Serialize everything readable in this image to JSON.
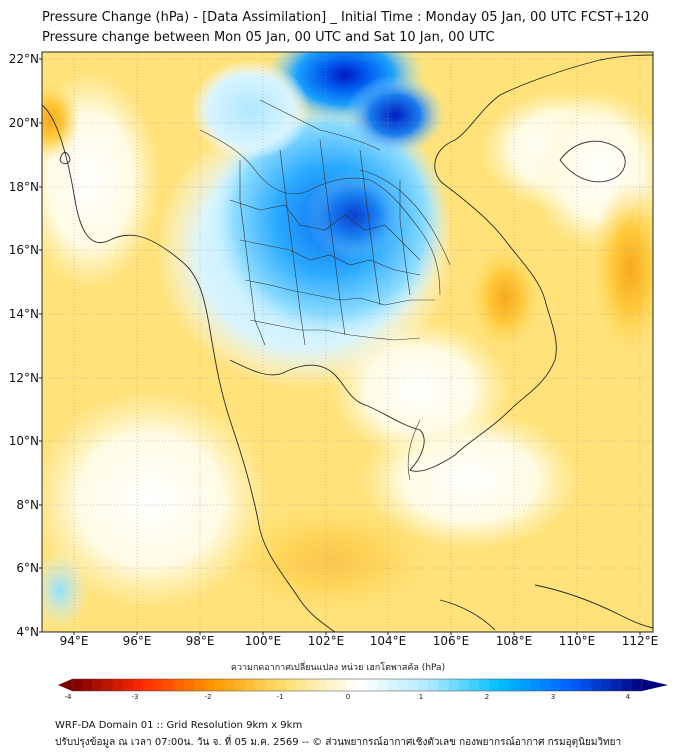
{
  "title_line1": "Pressure Change (hPa) - [Data Assimilation] _ Initial Time : Monday 05 Jan, 00 UTC FCST+120",
  "title_line2": "Pressure change between Mon 05 Jan, 00 UTC and Sat 10 Jan, 00 UTC",
  "lat_labels": [
    "22°N",
    "20°N",
    "18°N",
    "16°N",
    "14°N",
    "12°N",
    "10°N",
    "8°N",
    "6°N",
    "4°N"
  ],
  "lon_labels": [
    "94°E",
    "96°E",
    "98°E",
    "100°E",
    "102°E",
    "104°E",
    "106°E",
    "108°E",
    "110°E",
    "112°E"
  ],
  "colorbar": {
    "title": "ความกดอากาศเปลี่ยนแปลง หน่วย เฮกโตพาสคัล (hPa)",
    "ticks": [
      "-4",
      "-3",
      "-2",
      "-1",
      "0",
      "1",
      "2",
      "3",
      "4"
    ],
    "colors": {
      "neg_dark": "#7a0000",
      "neg_mid": "#ff2a00",
      "neg_orange": "#ff9a00",
      "neg_light": "#ffe070",
      "zero": "#ffffff",
      "pos_light": "#b0eaff",
      "pos_mid": "#00c0ff",
      "pos_blue": "#0060ff",
      "pos_dark": "#000080"
    }
  },
  "footer_line1": "WRF-DA Domain 01 :: Grid Resolution 9km x 9km",
  "footer_line2": "ปรับปรุงข้อมูล ณ เวลา 07:00น. วัน จ. ที่ 05 ม.ค. 2569 -- © ส่วนพยากรณ์อากาศเชิงตัวเลข กองพยากรณ์อากาศ กรมอุตุนิยมวิทยา"
}
